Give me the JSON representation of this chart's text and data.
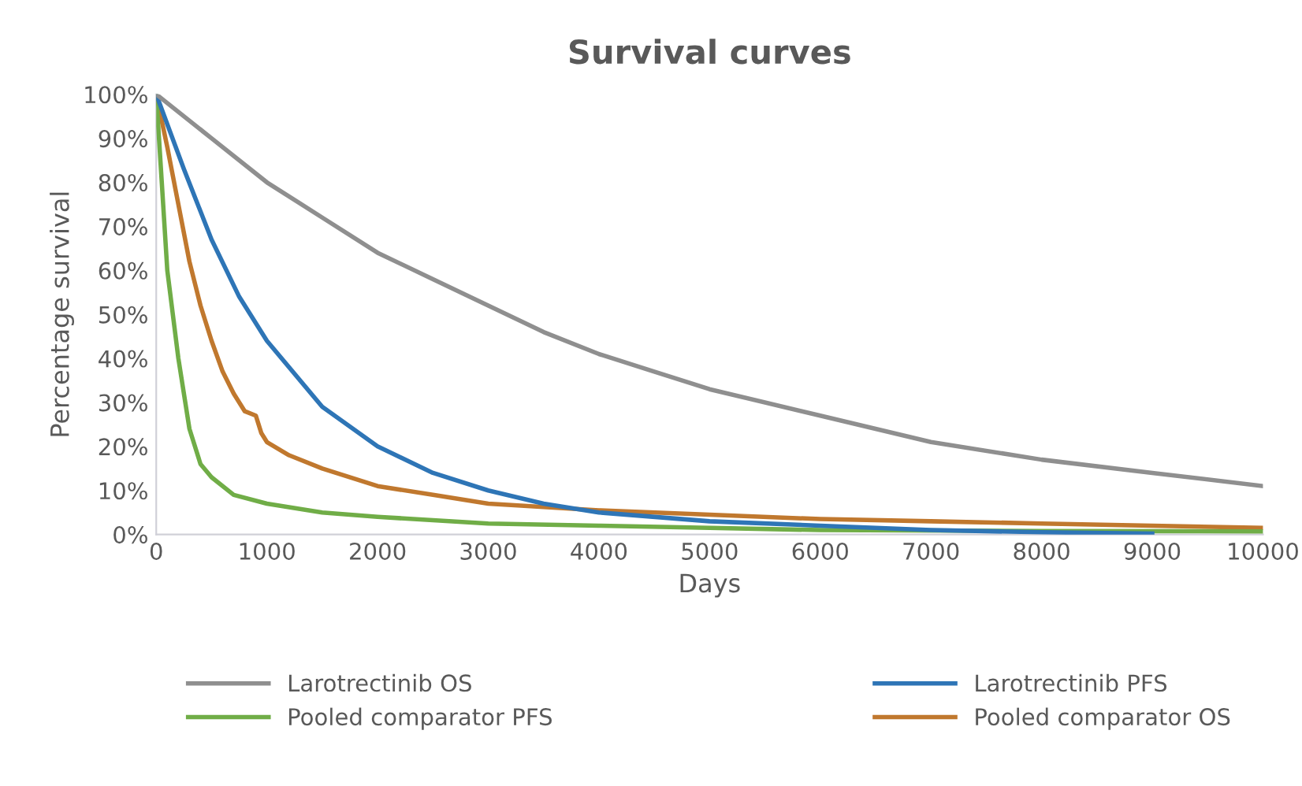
{
  "chart_data": {
    "type": "line",
    "title": "Survival curves",
    "xlabel": "Days",
    "ylabel": "Percentage survival",
    "xlim": [
      0,
      10000
    ],
    "xticks": [
      0,
      1000,
      2000,
      3000,
      4000,
      5000,
      6000,
      7000,
      8000,
      9000,
      10000
    ],
    "ylim": [
      0,
      100
    ],
    "yticks": [
      {
        "value": 0,
        "label": "0%"
      },
      {
        "value": 10,
        "label": "10%"
      },
      {
        "value": 20,
        "label": "20%"
      },
      {
        "value": 30,
        "label": "30%"
      },
      {
        "value": 40,
        "label": "40%"
      },
      {
        "value": 50,
        "label": "50%"
      },
      {
        "value": 60,
        "label": "60%"
      },
      {
        "value": 70,
        "label": "70%"
      },
      {
        "value": 80,
        "label": "80%"
      },
      {
        "value": 90,
        "label": "90%"
      },
      {
        "value": 100,
        "label": "100%"
      }
    ],
    "grid": false,
    "legend": "bottom",
    "marker": "none",
    "line_style": "solid",
    "series": [
      {
        "name": "Larotrectinib OS",
        "color": "#8f8f8f",
        "x": [
          0,
          500,
          1000,
          1500,
          2000,
          2500,
          3000,
          3500,
          4000,
          4500,
          5000,
          6000,
          7000,
          8000,
          9000,
          10000
        ],
        "values": [
          100,
          90,
          80,
          72,
          64,
          58,
          52,
          46,
          41,
          37,
          33,
          27,
          21,
          17,
          14,
          11
        ]
      },
      {
        "name": "Larotrectinib PFS",
        "color": "#2e75b6",
        "x": [
          0,
          250,
          500,
          750,
          1000,
          1500,
          2000,
          2500,
          3000,
          3500,
          4000,
          5000,
          6000,
          7000,
          8000,
          9000
        ],
        "values": [
          100,
          83,
          67,
          54,
          44,
          29,
          20,
          14,
          10,
          7,
          5,
          3,
          2,
          1,
          0.5,
          0.2
        ]
      },
      {
        "name": "Pooled comparator PFS",
        "color": "#70ad47",
        "x": [
          0,
          50,
          100,
          200,
          300,
          400,
          500,
          700,
          1000,
          1500,
          2000,
          3000,
          4000,
          5000,
          6000,
          8000,
          10000
        ],
        "values": [
          100,
          80,
          60,
          40,
          24,
          16,
          13,
          9,
          7,
          5,
          4,
          2.5,
          2,
          1.5,
          1,
          0.8,
          0.7
        ]
      },
      {
        "name": "Pooled comparator OS",
        "color": "#c0782e",
        "x": [
          0,
          100,
          200,
          300,
          400,
          500,
          600,
          700,
          800,
          900,
          950,
          1000,
          1200,
          1500,
          2000,
          2500,
          3000,
          4000,
          5000,
          6000,
          7000,
          8000,
          9000,
          10000
        ],
        "values": [
          100,
          88,
          75,
          62,
          52,
          44,
          37,
          32,
          28,
          27,
          23,
          21,
          18,
          15,
          11,
          9,
          7,
          5.5,
          4.5,
          3.5,
          3,
          2.5,
          2,
          1.5
        ]
      }
    ]
  }
}
